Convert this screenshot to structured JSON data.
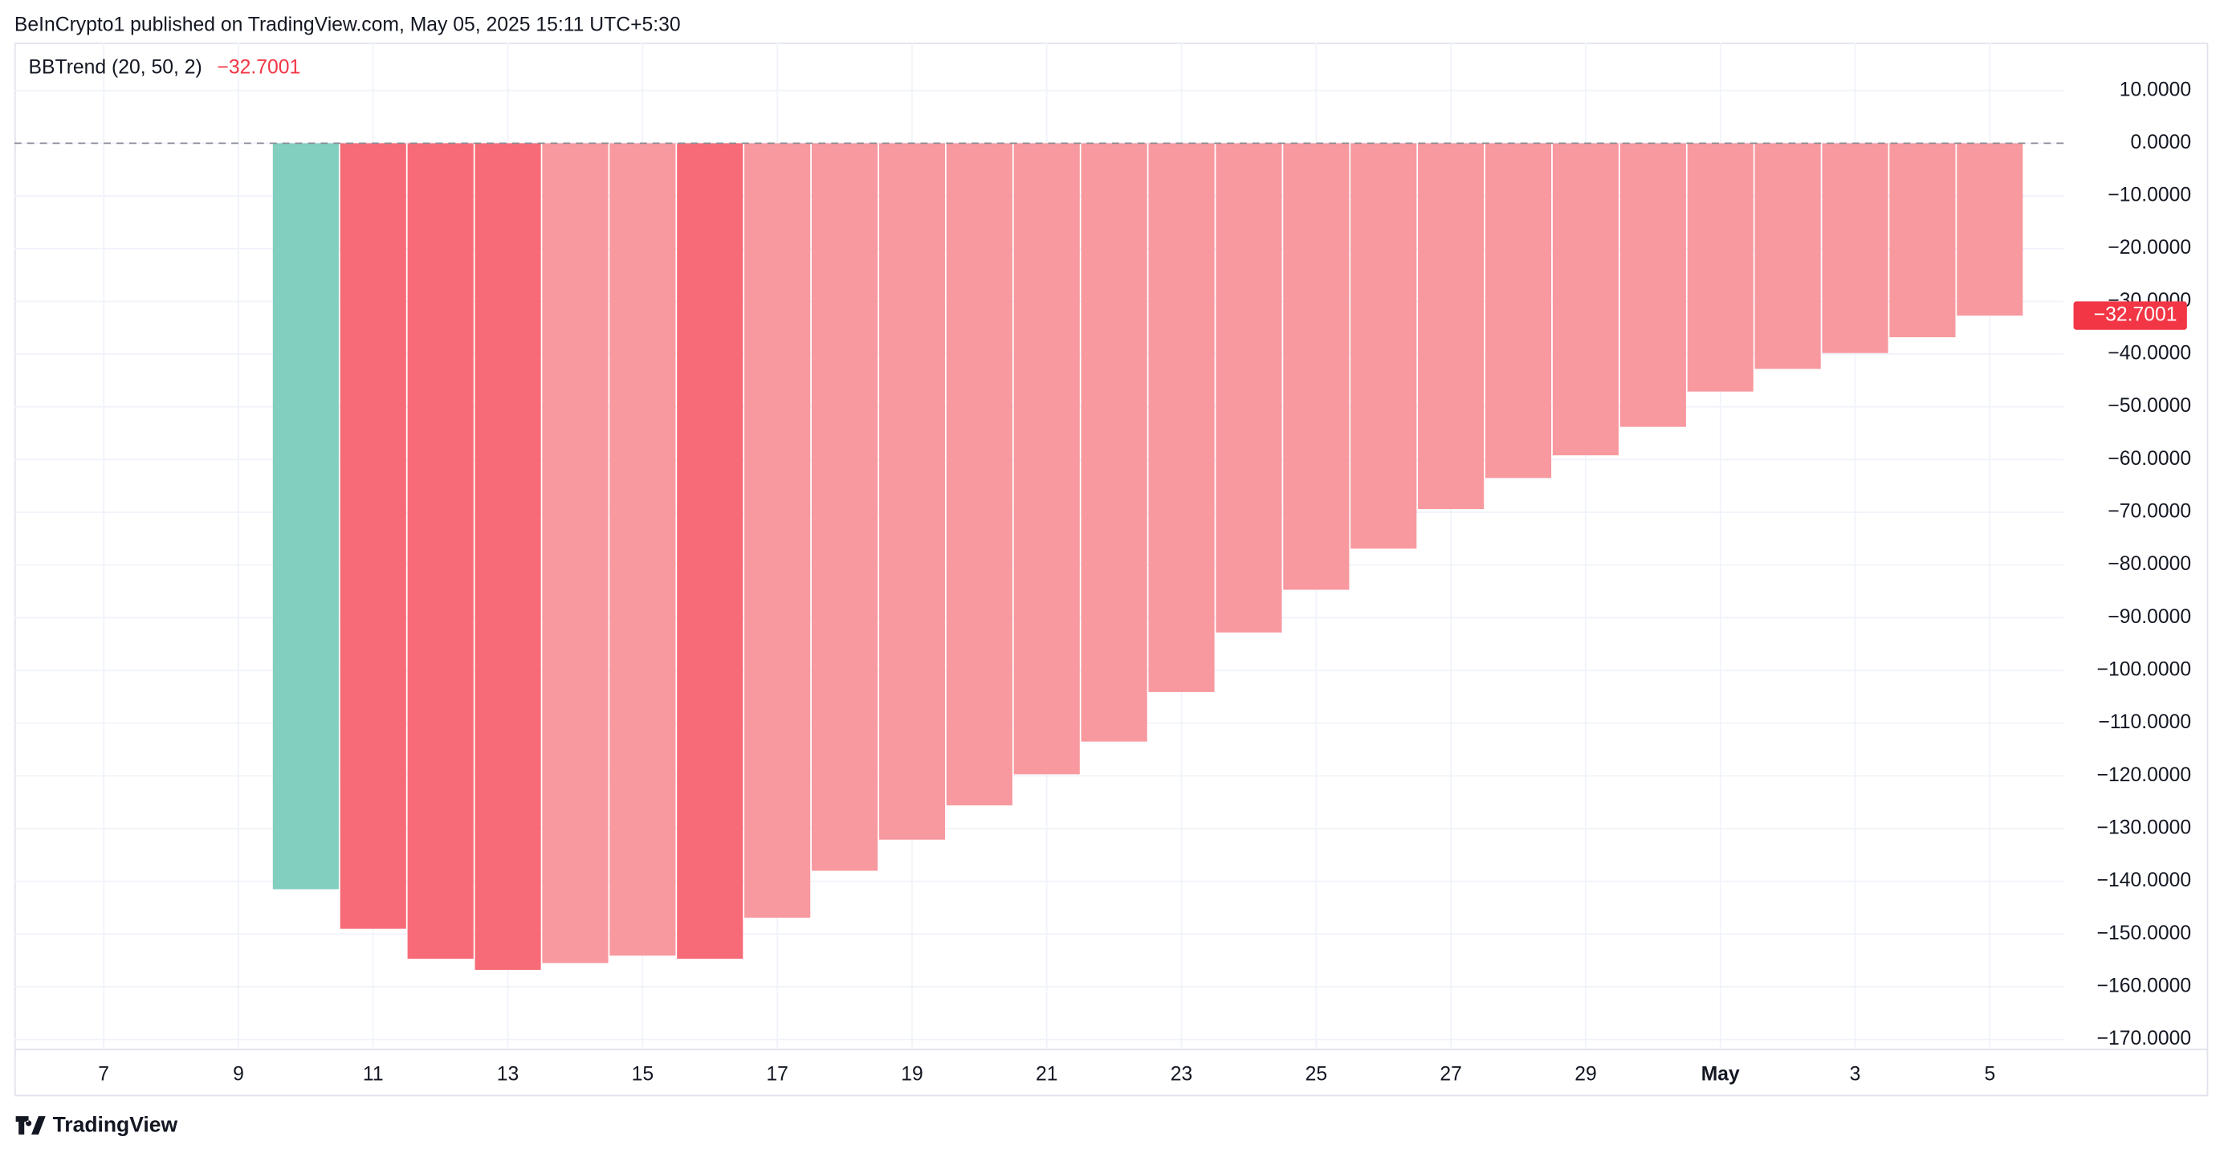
{
  "header": {
    "publisher": "BeInCrypto1 published on TradingView.com, May 05, 2025 15:11 UTC+5:30"
  },
  "footer": {
    "brand": "TradingView"
  },
  "chart_data": {
    "type": "bar",
    "indicator": "BBTrend (20, 50, 2)",
    "last_value_label": "−32.7001",
    "categories": [
      "7",
      null,
      "9",
      null,
      "11",
      null,
      "13",
      null,
      "15",
      null,
      "17",
      null,
      "19",
      null,
      "21",
      null,
      "23",
      null,
      "25",
      null,
      "27",
      null,
      "29",
      null,
      "May",
      null,
      "3",
      null,
      "5"
    ],
    "series": [
      {
        "name": "BBTrend (20, 50, 2)",
        "values": [
          null,
          null,
          null,
          -141.5,
          -149.0,
          -154.7,
          -156.8,
          -155.5,
          -154.1,
          -154.7,
          -146.9,
          -138.0,
          -132.1,
          -125.6,
          -119.7,
          -113.5,
          -104.1,
          -92.8,
          -84.7,
          -76.9,
          -69.4,
          -63.5,
          -59.2,
          -53.8,
          -47.1,
          -42.8,
          -39.8,
          -36.8,
          -32.7001
        ],
        "colors": [
          null,
          null,
          null,
          "#82cebf",
          "#f66b77",
          "#f66b77",
          "#f66b77",
          "#f7999f",
          "#f7999f",
          "#f66b77",
          "#f7999f",
          "#f7999f",
          "#f7999f",
          "#f7999f",
          "#f7999f",
          "#f7999f",
          "#f7999f",
          "#f7999f",
          "#f7999f",
          "#f7999f",
          "#f7999f",
          "#f7999f",
          "#f7999f",
          "#f7999f",
          "#f7999f",
          "#f7999f",
          "#f7999f",
          "#f7999f",
          "#f7999f"
        ]
      }
    ],
    "ylim": [
      -171.9,
      19.1
    ],
    "yticks": [
      {
        "value": 10,
        "label": "10.0000"
      },
      {
        "value": 0,
        "label": "0.0000"
      },
      {
        "value": -10,
        "label": "−10.0000"
      },
      {
        "value": -20,
        "label": "−20.0000"
      },
      {
        "value": -30,
        "label": "−30.0000"
      },
      {
        "value": -40,
        "label": "−40.0000"
      },
      {
        "value": -50,
        "label": "−50.0000"
      },
      {
        "value": -60,
        "label": "−60.0000"
      },
      {
        "value": -70,
        "label": "−70.0000"
      },
      {
        "value": -80,
        "label": "−80.0000"
      },
      {
        "value": -90,
        "label": "−90.0000"
      },
      {
        "value": -100,
        "label": "−100.0000"
      },
      {
        "value": -110,
        "label": "−110.0000"
      },
      {
        "value": -120,
        "label": "−120.0000"
      },
      {
        "value": -130,
        "label": "−130.0000"
      },
      {
        "value": -140,
        "label": "−140.0000"
      },
      {
        "value": -150,
        "label": "−150.0000"
      },
      {
        "value": -160,
        "label": "−160.0000"
      },
      {
        "value": -170,
        "label": "−170.0000"
      }
    ],
    "grid": true,
    "last_value_color": "#f23645"
  }
}
